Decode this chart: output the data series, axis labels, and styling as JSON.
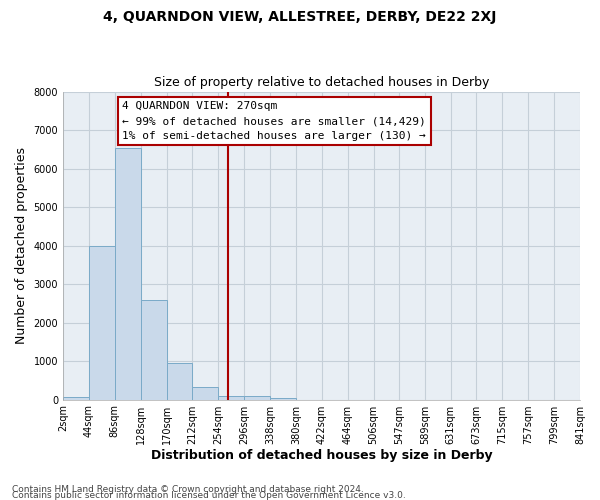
{
  "title": "4, QUARNDON VIEW, ALLESTREE, DERBY, DE22 2XJ",
  "subtitle": "Size of property relative to detached houses in Derby",
  "xlabel": "Distribution of detached houses by size in Derby",
  "ylabel": "Number of detached properties",
  "footnote_line1": "Contains HM Land Registry data © Crown copyright and database right 2024.",
  "footnote_line2": "Contains public sector information licensed under the Open Government Licence v3.0.",
  "bar_edges": [
    2,
    44,
    86,
    128,
    170,
    212,
    254,
    296,
    338,
    380,
    422,
    464,
    506,
    547,
    589,
    631,
    673,
    715,
    757,
    799,
    841
  ],
  "bar_heights": [
    70,
    4000,
    6550,
    2600,
    960,
    320,
    100,
    100,
    30,
    0,
    0,
    0,
    0,
    0,
    0,
    0,
    0,
    0,
    0,
    0
  ],
  "bar_color": "#c9d9ea",
  "bar_edge_color": "#7aaac8",
  "vline_x": 270,
  "vline_color": "#aa0000",
  "ylim": [
    0,
    8000
  ],
  "yticks": [
    0,
    1000,
    2000,
    3000,
    4000,
    5000,
    6000,
    7000,
    8000
  ],
  "xtick_labels": [
    "2sqm",
    "44sqm",
    "86sqm",
    "128sqm",
    "170sqm",
    "212sqm",
    "254sqm",
    "296sqm",
    "338sqm",
    "380sqm",
    "422sqm",
    "464sqm",
    "506sqm",
    "547sqm",
    "589sqm",
    "631sqm",
    "673sqm",
    "715sqm",
    "757sqm",
    "799sqm",
    "841sqm"
  ],
  "annotation_title": "4 QUARNDON VIEW: 270sqm",
  "annotation_line1": "← 99% of detached houses are smaller (14,429)",
  "annotation_line2": "1% of semi-detached houses are larger (130) →",
  "plot_bg_color": "#e8eef4",
  "fig_bg_color": "#ffffff",
  "grid_color": "#c5cfd8",
  "title_fontsize": 10,
  "subtitle_fontsize": 9,
  "label_fontsize": 9,
  "tick_fontsize": 7,
  "footnote_fontsize": 6.5,
  "annotation_fontsize": 8
}
